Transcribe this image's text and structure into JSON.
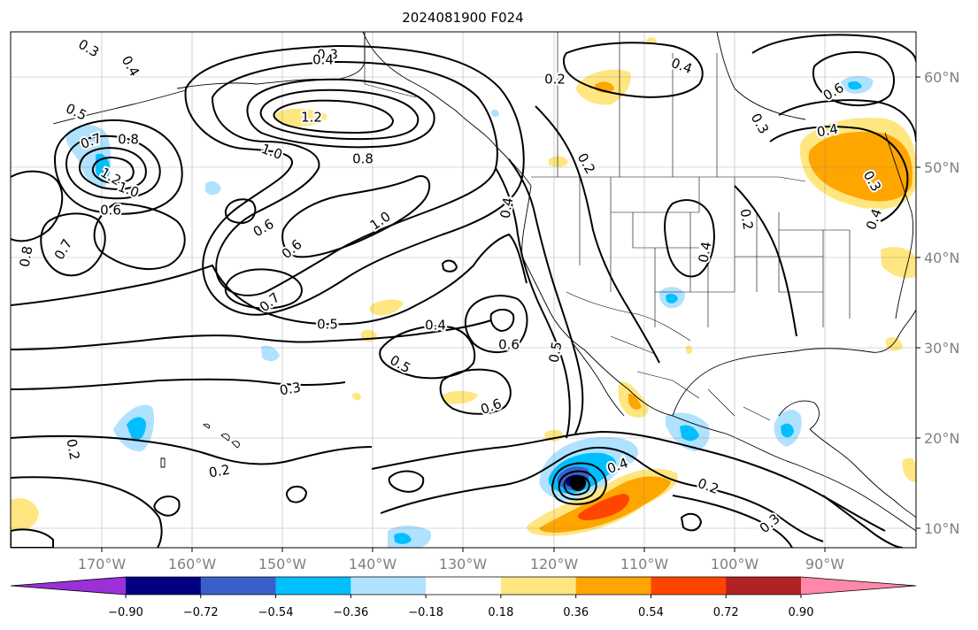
{
  "title": "2024081900 F024",
  "map": {
    "lon_ticks": [
      "170°W",
      "160°W",
      "150°W",
      "140°W",
      "130°W",
      "120°W",
      "110°W",
      "100°W",
      "90°W"
    ],
    "lat_ticks": [
      "60°N",
      "50°N",
      "40°N",
      "30°N",
      "20°N",
      "10°N"
    ],
    "storm_marker": "storm-center",
    "contour_labels": [
      {
        "text": "0.3"
      },
      {
        "text": "0.4"
      },
      {
        "text": "0.5"
      },
      {
        "text": "0.7"
      },
      {
        "text": "0.8"
      },
      {
        "text": "1.2"
      },
      {
        "text": "1.0"
      },
      {
        "text": "0.6"
      },
      {
        "text": "0.8"
      },
      {
        "text": "0.7"
      },
      {
        "text": "0.3"
      },
      {
        "text": "0.4"
      },
      {
        "text": "1.2"
      },
      {
        "text": "1.0"
      },
      {
        "text": "0.8"
      },
      {
        "text": "0.6"
      },
      {
        "text": "0.6"
      },
      {
        "text": "1.0"
      },
      {
        "text": "0.7"
      },
      {
        "text": "0.5"
      },
      {
        "text": "0.4"
      },
      {
        "text": "0.5"
      },
      {
        "text": "0.6"
      },
      {
        "text": "0.3"
      },
      {
        "text": "0.6"
      },
      {
        "text": "0.2"
      },
      {
        "text": "0.2"
      },
      {
        "text": "0.4"
      },
      {
        "text": "0.5"
      },
      {
        "text": "0.4"
      },
      {
        "text": "0.2"
      },
      {
        "text": "0.4"
      },
      {
        "text": "0.2"
      },
      {
        "text": "0.3"
      },
      {
        "text": "0.2"
      },
      {
        "text": "0.4"
      },
      {
        "text": "0.6"
      },
      {
        "text": "0.4"
      },
      {
        "text": "0.3"
      },
      {
        "text": "0.4"
      },
      {
        "text": "0.2"
      },
      {
        "text": "0.3"
      }
    ]
  },
  "colorbar": {
    "ticks": [
      "−0.90",
      "−0.72",
      "−0.54",
      "−0.36",
      "−0.18",
      "0.18",
      "0.36",
      "0.54",
      "0.72",
      "0.90"
    ],
    "colors": [
      "#9b30d9",
      "#000080",
      "#3a5fcd",
      "#00bfff",
      "#b0e2ff",
      "#ffffff",
      "#ffe680",
      "#ffa500",
      "#ff4500",
      "#b22222",
      "#ff88aa"
    ]
  }
}
